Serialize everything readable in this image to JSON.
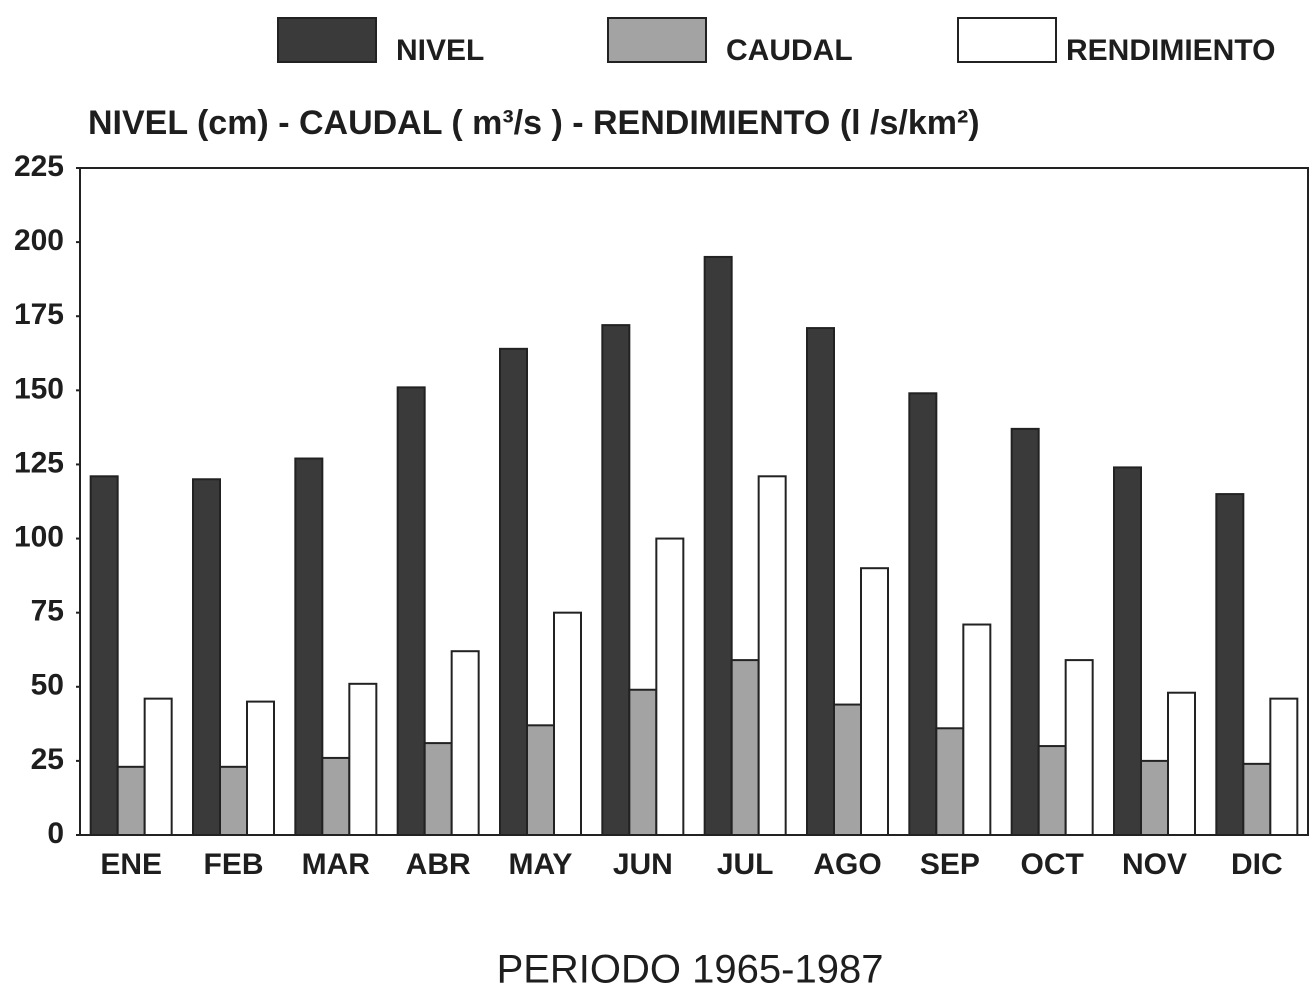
{
  "chart_data": {
    "type": "bar",
    "title": "NIVEL (cm) - CAUDAL ( m³/s ) - RENDIMIENTO (l /s/km²)",
    "x_label": "PERIODO 1965-1987",
    "categories": [
      "ENE",
      "FEB",
      "MAR",
      "ABR",
      "MAY",
      "JUN",
      "JUL",
      "AGO",
      "SEP",
      "OCT",
      "NOV",
      "DIC"
    ],
    "series": [
      {
        "name": "NIVEL",
        "color": "#3a3a3a",
        "values": [
          121,
          120,
          127,
          151,
          164,
          172,
          195,
          171,
          149,
          137,
          124,
          115
        ]
      },
      {
        "name": "CAUDAL",
        "color": "#a3a3a3",
        "values": [
          23,
          23,
          26,
          31,
          37,
          49,
          59,
          44,
          36,
          30,
          25,
          24
        ]
      },
      {
        "name": "RENDIMIENTO",
        "color": "#ffffff",
        "values": [
          46,
          45,
          51,
          62,
          75,
          100,
          121,
          90,
          71,
          59,
          48,
          46
        ]
      }
    ],
    "ylim": [
      0,
      225
    ],
    "yticks": [
      0,
      25,
      50,
      75,
      100,
      125,
      150,
      175,
      200,
      225
    ],
    "grid": false
  }
}
